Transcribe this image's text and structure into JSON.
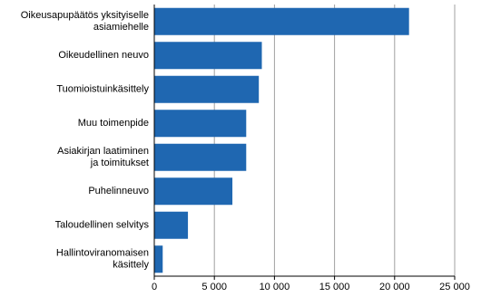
{
  "chart_data": {
    "type": "hbar",
    "categories": [
      [
        "Oikeusapupäätös yksityiselle",
        "asiamiehelle"
      ],
      [
        "Oikeudellinen neuvo"
      ],
      [
        "Tuomioistuinkäsittely"
      ],
      [
        "Muu toimenpide"
      ],
      [
        "Asiakirjan laatiminen",
        "ja toimitukset"
      ],
      [
        "Puhelinneuvo"
      ],
      [
        "Taloudellinen selvitys"
      ],
      [
        "Hallintoviranomaisen",
        "käsittely"
      ]
    ],
    "values": [
      21200,
      8950,
      8700,
      7650,
      7650,
      6500,
      2800,
      700
    ],
    "color": "#1f67b1",
    "xlim": [
      0,
      25000
    ],
    "xticks": [
      0,
      {
        "value": 5000,
        "label": "5 000"
      },
      {
        "value": 10000,
        "label": "10 000"
      },
      {
        "value": 15000,
        "label": "15 000"
      },
      {
        "value": 20000,
        "label": "20 000"
      },
      {
        "value": 25000,
        "label": "25 000"
      }
    ],
    "grid": true
  }
}
